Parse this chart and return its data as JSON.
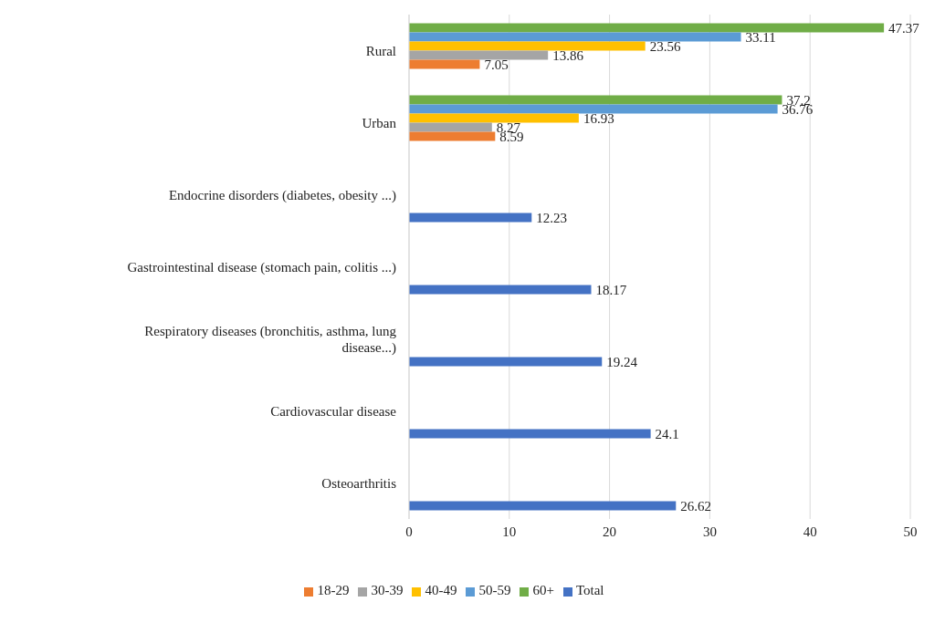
{
  "chart_data": {
    "type": "bar",
    "orientation": "horizontal",
    "categories": [
      "Rural",
      "Urban",
      "Endocrine disorders (diabetes, obesity ...)",
      "Gastrointestinal disease (stomach pain, colitis ...)",
      "Respiratory diseases (bronchitis, asthma, lung disease...)",
      "Cardiovascular disease",
      "Osteoarthritis"
    ],
    "series": [
      {
        "name": "60+",
        "color": "#70ad47",
        "values": [
          47.37,
          37.2,
          null,
          null,
          null,
          null,
          null
        ]
      },
      {
        "name": "50-59",
        "color": "#5b9bd5",
        "values": [
          33.11,
          36.76,
          null,
          null,
          null,
          null,
          null
        ]
      },
      {
        "name": "40-49",
        "color": "#ffc000",
        "values": [
          23.56,
          16.93,
          null,
          null,
          null,
          null,
          null
        ]
      },
      {
        "name": "30-39",
        "color": "#a5a5a5",
        "values": [
          13.86,
          8.27,
          null,
          null,
          null,
          null,
          null
        ]
      },
      {
        "name": "18-29",
        "color": "#ed7d31",
        "values": [
          7.05,
          8.59,
          null,
          null,
          null,
          null,
          null
        ]
      },
      {
        "name": "Total",
        "color": "#4472c4",
        "values": [
          null,
          null,
          12.23,
          18.17,
          19.24,
          24.1,
          26.62
        ]
      }
    ],
    "xlim": [
      0,
      50
    ],
    "xticks": [
      0,
      10,
      20,
      30,
      40,
      50
    ],
    "grid": "x",
    "legend": "bottom",
    "data_labels": true
  }
}
